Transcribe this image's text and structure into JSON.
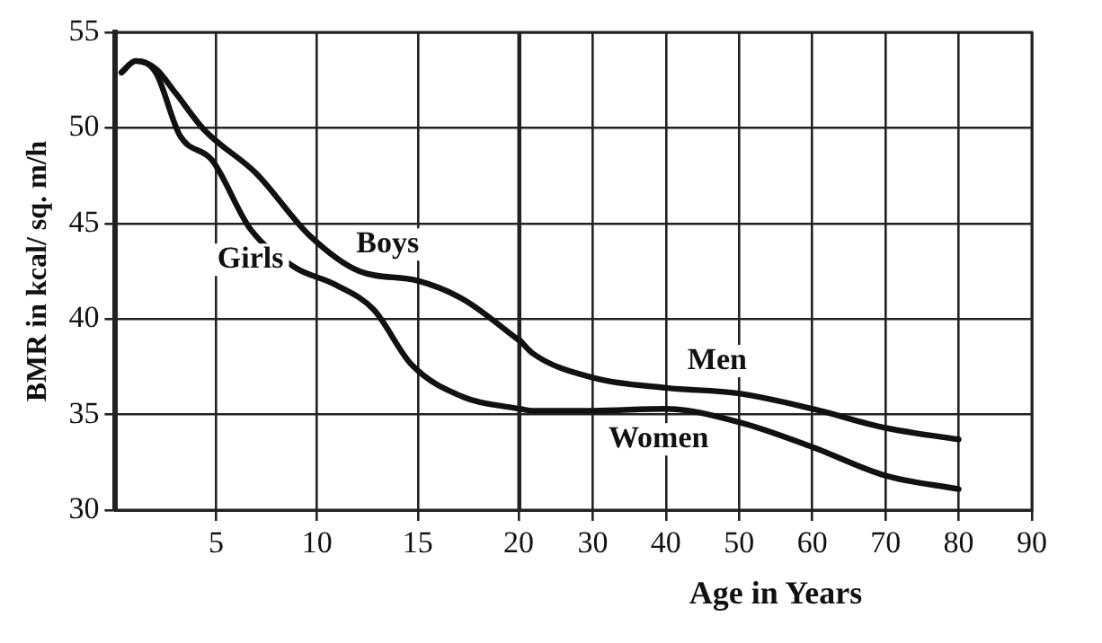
{
  "chart_data": [
    {
      "type": "line",
      "ylabel": "BMR in kcal/ sq. m/h",
      "series": [
        {
          "color": "#111111",
          "x": [
            0.3,
            1,
            2,
            3,
            4.4,
            7,
            9.6,
            12.1,
            15,
            17.3,
            20
          ],
          "values": [
            52.9,
            53.5,
            53.1,
            51.8,
            49.9,
            47.6,
            44.4,
            42.5,
            42,
            41,
            38.9
          ]
        },
        {
          "color": "#111111",
          "x": [
            0.3,
            1,
            2,
            3.2,
            4.8,
            6.7,
            8.9,
            10.9,
            12.8,
            14.7,
            17.3,
            20
          ],
          "values": [
            52.9,
            53.5,
            52.9,
            49.6,
            48.3,
            44.7,
            42.7,
            41.8,
            40.5,
            37.6,
            35.9,
            35.3
          ]
        }
      ],
      "xlim": [
        0,
        20
      ],
      "xticks": [
        5,
        10,
        15,
        20
      ],
      "ylim": [
        30,
        55
      ],
      "yticks": [
        30,
        35,
        40,
        45,
        50,
        55
      ],
      "grid": true,
      "line_style": "solid",
      "annotations": [
        {
          "text": "Boys",
          "x": 13.5,
          "y": 42.3
        },
        {
          "text": "Girls",
          "x": 6.7,
          "y": 44.7
        }
      ]
    },
    {
      "type": "line",
      "xlabel": "Age in Years",
      "series": [
        {
          "color": "#111111",
          "x": [
            20,
            21.8,
            30.3,
            40,
            50,
            60,
            70,
            80
          ],
          "values": [
            38.9,
            38.2,
            36.9,
            36.4,
            36.1,
            35.3,
            34.3,
            33.7
          ]
        },
        {
          "color": "#111111",
          "x": [
            20,
            21.8,
            30,
            40,
            50,
            60,
            70,
            80
          ],
          "values": [
            35.3,
            35.2,
            35.2,
            35.3,
            34.6,
            33.3,
            31.8,
            31.1
          ]
        }
      ],
      "xlim": [
        20,
        90
      ],
      "xticks": [
        30,
        40,
        50,
        60,
        70,
        80,
        90
      ],
      "ylim": [
        30,
        55
      ],
      "yticks": [
        30,
        35,
        40,
        45,
        50,
        55
      ],
      "tick_labels": "x",
      "grid": true,
      "line_style": "solid",
      "annotations": [
        {
          "text": "Men",
          "x": 47,
          "y": 36.2
        },
        {
          "text": "Women",
          "x": 39,
          "y": 35.3
        }
      ]
    }
  ]
}
